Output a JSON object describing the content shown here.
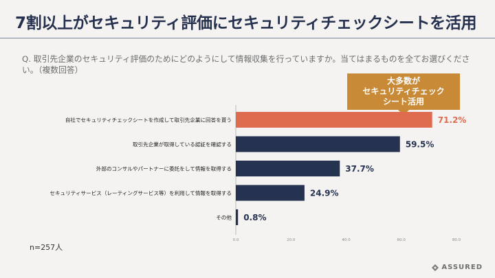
{
  "slide": {
    "title": "7割以上がセキュリティ評価にセキュリティチェックシートを活用",
    "question": "Q. 取引先企業のセキュリティ評価のためにどのようにして情報収集を行っていますか。当てはまるものを全てお選びください。（複数回答）",
    "callout_lines": [
      "大多数が",
      "セキュリティチェック",
      "シート活用"
    ],
    "sample_size": "n=257人",
    "logo_text": "ASSURED"
  },
  "colors": {
    "highlight": "#e06c50",
    "bar": "#263350",
    "callout": "#c98a37"
  },
  "chart_data": {
    "type": "bar",
    "orientation": "horizontal",
    "categories": [
      "自社でセキュリティチェックシートを作成して取引先企業に回答を貰う",
      "取引先企業が取得している認証を確認する",
      "外部のコンサルやパートナーに委託をして情報を取得する",
      "セキュリティサービス（レーティングサービス等）を利用して情報を取得する",
      "その他"
    ],
    "values": [
      71.2,
      59.5,
      37.7,
      24.9,
      0.8
    ],
    "value_labels": [
      "71.2%",
      "59.5%",
      "37.7%",
      "24.9%",
      "0.8%"
    ],
    "highlight_index": 0,
    "xlim": [
      0,
      80
    ],
    "ticks": [
      0,
      20,
      40,
      60,
      80
    ],
    "tick_labels": [
      "0.0",
      "20.0",
      "40.0",
      "60.0",
      "80.0"
    ],
    "grid": false
  }
}
